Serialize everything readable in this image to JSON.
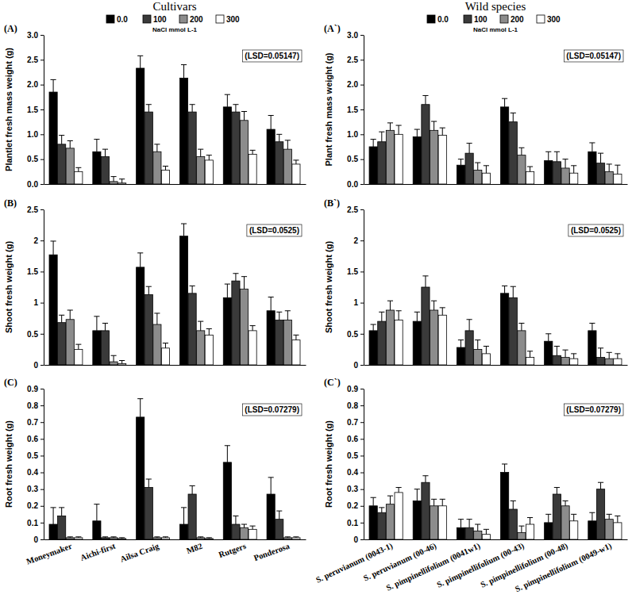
{
  "chart_data": [
    {
      "type": "bar",
      "title": "(A)",
      "subtitle": "Cultivars",
      "y_label": "Plantlet  fresh mass weight (g)",
      "annotations": [
        "(LSD=0.05147)"
      ],
      "legend": "top",
      "legend_title": "NaCl mmol L-1",
      "categories": [
        null,
        null,
        null,
        null,
        null,
        null
      ],
      "series": [
        {
          "name": "0.0",
          "color": "#000000",
          "values": [
            1.85,
            0.65,
            2.33,
            2.13,
            1.55,
            1.1
          ],
          "errors": [
            0.25,
            0.25,
            0.25,
            0.27,
            0.25,
            0.28
          ]
        },
        {
          "name": "100",
          "color": "#3a3a3a",
          "values": [
            0.8,
            0.55,
            1.45,
            1.45,
            1.45,
            0.85
          ],
          "errors": [
            0.18,
            0.15,
            0.15,
            0.15,
            0.15,
            0.15
          ]
        },
        {
          "name": "200",
          "color": "#8c8c8c",
          "values": [
            0.72,
            0.05,
            0.65,
            0.55,
            1.28,
            0.7
          ],
          "errors": [
            0.15,
            0.1,
            0.15,
            0.15,
            0.18,
            0.18
          ]
        },
        {
          "name": "300",
          "color": "#ffffff",
          "values": [
            0.25,
            0.02,
            0.28,
            0.48,
            0.6,
            0.4
          ],
          "errors": [
            0.08,
            0.08,
            0.08,
            0.1,
            0.08,
            0.08
          ]
        }
      ],
      "ylim": [
        0,
        3
      ],
      "yticks": [
        {
          "value": 0,
          "label": "0.0"
        },
        0.5,
        {
          "value": 1,
          "label": "1.0"
        },
        1.5,
        {
          "value": 2,
          "label": "2.0"
        },
        2.5,
        {
          "value": 3,
          "label": "3.0"
        }
      ],
      "grid": false
    },
    {
      "type": "bar",
      "title": "(A`)",
      "subtitle": "Wild species",
      "y_label": "Plant fresh mass weight (g)",
      "annotations": [
        "(LSD=0.05147)"
      ],
      "legend": "top",
      "legend_title": "NaCl mmol L-1",
      "categories": [
        null,
        null,
        null,
        null,
        null,
        null
      ],
      "series": [
        {
          "name": "0.0",
          "color": "#000000",
          "values": [
            0.75,
            0.95,
            0.38,
            1.55,
            0.47,
            0.65
          ],
          "errors": [
            0.15,
            0.15,
            0.12,
            0.17,
            0.18,
            0.18
          ]
        },
        {
          "name": "100",
          "color": "#3a3a3a",
          "values": [
            0.85,
            1.6,
            0.62,
            1.25,
            0.45,
            0.42
          ],
          "errors": [
            0.2,
            0.18,
            0.2,
            0.18,
            0.2,
            0.2
          ]
        },
        {
          "name": "200",
          "color": "#8c8c8c",
          "values": [
            1.08,
            1.08,
            0.28,
            0.58,
            0.32,
            0.25
          ],
          "errors": [
            0.15,
            0.18,
            0.15,
            0.15,
            0.18,
            0.15
          ]
        },
        {
          "name": "300",
          "color": "#ffffff",
          "values": [
            1.0,
            0.98,
            0.22,
            0.25,
            0.22,
            0.2
          ],
          "errors": [
            0.18,
            0.15,
            0.15,
            0.1,
            0.15,
            0.18
          ]
        }
      ],
      "ylim": [
        0,
        3
      ],
      "yticks": [
        {
          "value": 0,
          "label": "0.0"
        },
        0.5,
        {
          "value": 1,
          "label": "1.0"
        },
        1.5,
        {
          "value": 2,
          "label": "2.0"
        },
        2.5,
        {
          "value": 3,
          "label": "3.0"
        }
      ],
      "grid": false
    },
    {
      "type": "bar",
      "title": "(B)",
      "y_label": "Shoot fresh weight (g)",
      "annotations": [
        "(LSD=0.0525)"
      ],
      "categories": [
        null,
        null,
        null,
        null,
        null,
        null
      ],
      "series": [
        {
          "color": "#000000",
          "values": [
            1.77,
            0.55,
            1.57,
            2.07,
            1.08,
            0.87
          ],
          "errors": [
            0.22,
            0.23,
            0.23,
            0.2,
            0.22,
            0.22
          ]
        },
        {
          "color": "#3a3a3a",
          "values": [
            0.68,
            0.55,
            1.13,
            1.15,
            1.35,
            0.72
          ],
          "errors": [
            0.12,
            0.12,
            0.13,
            0.12,
            0.12,
            0.13
          ]
        },
        {
          "color": "#8c8c8c",
          "values": [
            0.73,
            0.05,
            0.65,
            0.55,
            1.22,
            0.72
          ],
          "errors": [
            0.15,
            0.1,
            0.18,
            0.15,
            0.2,
            0.15
          ]
        },
        {
          "color": "#ffffff",
          "values": [
            0.25,
            0.02,
            0.27,
            0.48,
            0.55,
            0.4
          ],
          "errors": [
            0.08,
            0.05,
            0.08,
            0.1,
            0.08,
            0.08
          ]
        }
      ],
      "ylim": [
        0,
        2.5
      ],
      "yticks": [
        0,
        0.5,
        1,
        1.5,
        2,
        2.5
      ],
      "grid": false
    },
    {
      "type": "bar",
      "title": "(B`)",
      "y_label": "Shoot fresh weight (g)",
      "annotations": [
        "(LSD=0.0525)"
      ],
      "categories": [
        null,
        null,
        null,
        null,
        null,
        null
      ],
      "series": [
        {
          "color": "#000000",
          "values": [
            0.55,
            0.7,
            0.28,
            1.15,
            0.38,
            0.55
          ],
          "errors": [
            0.1,
            0.15,
            0.12,
            0.12,
            0.12,
            0.12
          ]
        },
        {
          "color": "#3a3a3a",
          "values": [
            0.7,
            1.25,
            0.55,
            1.08,
            0.15,
            0.12
          ],
          "errors": [
            0.15,
            0.18,
            0.18,
            0.18,
            0.15,
            0.15
          ]
        },
        {
          "color": "#8c8c8c",
          "values": [
            0.88,
            0.88,
            0.25,
            0.55,
            0.12,
            0.1
          ],
          "errors": [
            0.15,
            0.15,
            0.15,
            0.12,
            0.12,
            0.1
          ]
        },
        {
          "color": "#ffffff",
          "values": [
            0.72,
            0.8,
            0.18,
            0.12,
            0.1,
            0.1
          ],
          "errors": [
            0.15,
            0.12,
            0.12,
            0.1,
            0.08,
            0.08
          ]
        }
      ],
      "ylim": [
        0,
        2.5
      ],
      "yticks": [
        0,
        0.5,
        1,
        1.5,
        2,
        2.5
      ],
      "grid": false
    },
    {
      "type": "bar",
      "title": "(C)",
      "y_label": "Root fresh weight (g)",
      "annotations": [
        "(LSD=0.07279)"
      ],
      "categories": [
        "Moneymaker",
        "Aichi-first",
        "Ailsa Craig",
        "M82",
        "Rutgers",
        "Ponderosa"
      ],
      "series": [
        {
          "color": "#000000",
          "values": [
            0.09,
            0.11,
            0.73,
            0.09,
            0.46,
            0.27
          ],
          "errors": [
            0.1,
            0.1,
            0.11,
            0.1,
            0.1,
            0.1
          ]
        },
        {
          "color": "#3a3a3a",
          "values": [
            0.14,
            0.01,
            0.31,
            0.27,
            0.09,
            0.12
          ],
          "errors": [
            0.05,
            0.005,
            0.05,
            0.05,
            0.05,
            0.05
          ]
        },
        {
          "color": "#8c8c8c",
          "values": [
            0.01,
            0.01,
            0.01,
            0.01,
            0.07,
            0.01
          ],
          "errors": [
            0.005,
            0.005,
            0.005,
            0.005,
            0.02,
            0.005
          ]
        },
        {
          "color": "#ffffff",
          "values": [
            0.01,
            0.005,
            0.01,
            0.005,
            0.06,
            0.01
          ],
          "errors": [
            0.005,
            0.005,
            0.005,
            0.005,
            0.02,
            0.005
          ]
        }
      ],
      "ylim": [
        0,
        0.9
      ],
      "yticks": [
        0,
        0.1,
        0.2,
        0.3,
        0.4,
        0.5,
        0.6,
        0.7,
        0.8,
        0.9
      ],
      "grid": false
    },
    {
      "type": "bar",
      "title": "(C`)",
      "y_label": "Root fresh weight (g)",
      "annotations": [
        "(LSD=0.07279)"
      ],
      "categories": [
        "S. peruvianum (0043-1)",
        "S. peruvianum (00-46)",
        "S. pimpinellifolium (0041w1)",
        "S. pimpinellifolium (00-43)",
        "S. pimpinellifolium (00-48)",
        "S. pimpinellifolium (0049-w1)"
      ],
      "series": [
        {
          "color": "#000000",
          "values": [
            0.2,
            0.23,
            0.07,
            0.4,
            0.1,
            0.11
          ],
          "errors": [
            0.05,
            0.07,
            0.05,
            0.05,
            0.05,
            0.05
          ]
        },
        {
          "color": "#3a3a3a",
          "values": [
            0.16,
            0.34,
            0.07,
            0.18,
            0.27,
            0.3
          ],
          "errors": [
            0.03,
            0.04,
            0.05,
            0.05,
            0.04,
            0.04
          ]
        },
        {
          "color": "#8c8c8c",
          "values": [
            0.21,
            0.2,
            0.05,
            0.04,
            0.2,
            0.12
          ],
          "errors": [
            0.05,
            0.04,
            0.04,
            0.04,
            0.03,
            0.03
          ]
        },
        {
          "color": "#ffffff",
          "values": [
            0.28,
            0.2,
            0.03,
            0.09,
            0.11,
            0.1
          ],
          "errors": [
            0.03,
            0.04,
            0.03,
            0.04,
            0.04,
            0.04
          ]
        }
      ],
      "ylim": [
        0,
        0.9
      ],
      "yticks": [
        0,
        0.1,
        0.2,
        0.3,
        0.4,
        0.5,
        0.6,
        0.7,
        0.8,
        0.9
      ],
      "grid": false
    }
  ]
}
